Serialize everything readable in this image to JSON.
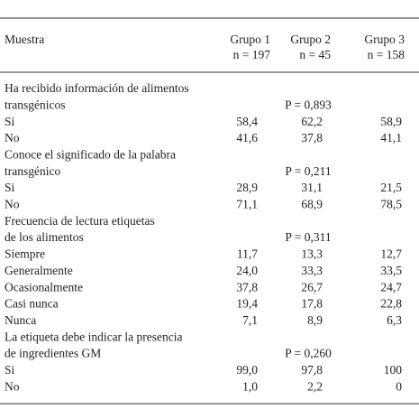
{
  "header": {
    "label": "Muestra",
    "groups": [
      {
        "name": "Grupo 1",
        "n": "n = 197"
      },
      {
        "name": "Grupo 2",
        "n": "n = 45"
      },
      {
        "name": "Grupo 3",
        "n": "n = 158"
      }
    ]
  },
  "sections": [
    {
      "question": [
        "Ha recibido información de alimentos",
        "transgénicos"
      ],
      "p_value": "P = 0,893",
      "rows": [
        {
          "label": "Si",
          "values": [
            "58,4",
            "62,2",
            "58,9"
          ]
        },
        {
          "label": "No",
          "values": [
            "41,6",
            "37,8",
            "41,1"
          ]
        }
      ]
    },
    {
      "question": [
        "Conoce el significado de la palabra",
        "transgénico"
      ],
      "p_value": "P = 0,211",
      "rows": [
        {
          "label": "Si",
          "values": [
            "28,9",
            "31,1",
            "21,5"
          ]
        },
        {
          "label": "No",
          "values": [
            "71,1",
            "68,9",
            "78,5"
          ]
        }
      ]
    },
    {
      "question": [
        "Frecuencia de lectura etiquetas",
        "de los alimentos"
      ],
      "p_value": "P = 0,311",
      "rows": [
        {
          "label": "Siempre",
          "values": [
            "11,7",
            "13,3",
            "12,7"
          ]
        },
        {
          "label": "Generalmente",
          "values": [
            "24,0",
            "33,3",
            "33,5"
          ]
        },
        {
          "label": "Ocasionalmente",
          "values": [
            "37,8",
            "26,7",
            "24,7"
          ]
        },
        {
          "label": "Casi nunca",
          "values": [
            "19,4",
            "17,8",
            "22,8"
          ]
        },
        {
          "label": "Nunca",
          "values": [
            "7,1",
            "8,9",
            "6,3"
          ]
        }
      ]
    },
    {
      "question": [
        "La etiqueta debe indicar la presencia",
        "de ingredientes GM"
      ],
      "p_value": "P = 0,260",
      "rows": [
        {
          "label": "Si",
          "values": [
            "99,0",
            "97,8",
            "100"
          ]
        },
        {
          "label": "No",
          "values": [
            "1,0",
            "2,2",
            "0"
          ]
        }
      ]
    }
  ]
}
